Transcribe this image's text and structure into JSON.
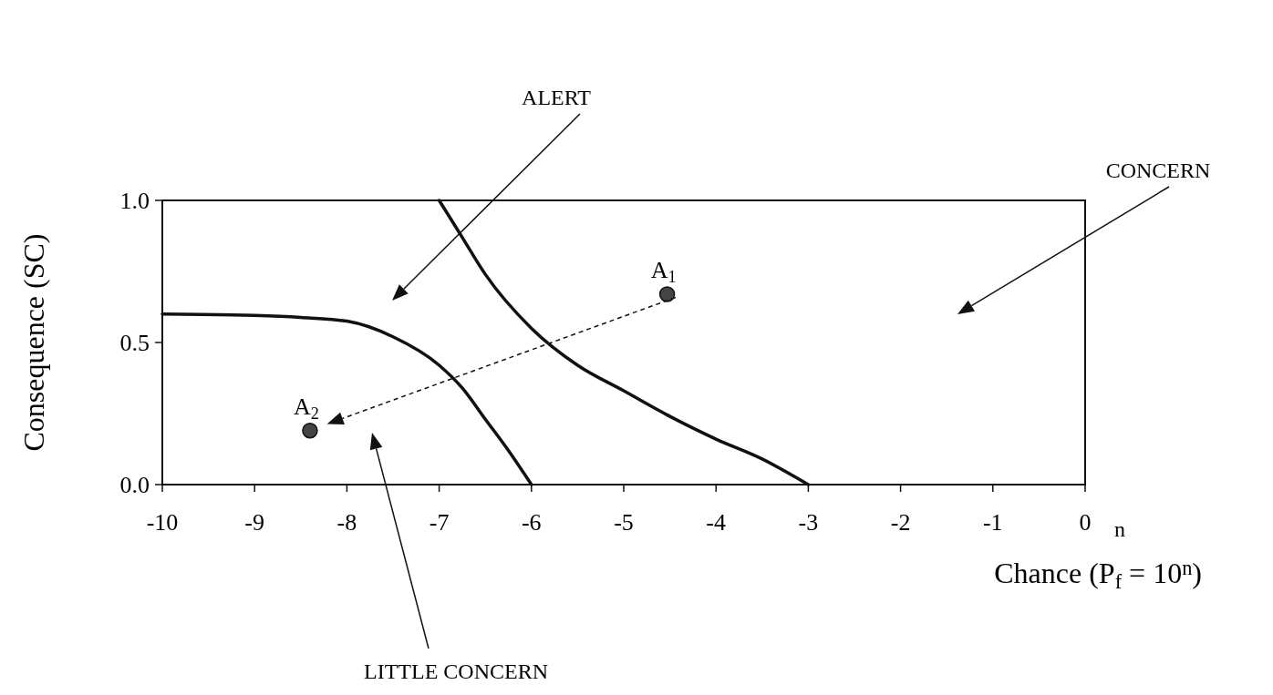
{
  "chart_data": {
    "type": "line",
    "xlabel": "Chance (P$_{f}$ = 10$^{n}$)",
    "ylabel": "Consequence (SC)",
    "xlim": [
      -10,
      0
    ],
    "xticks": [
      -10,
      -9,
      -8,
      -7,
      -6,
      -5,
      -4,
      -3,
      -2,
      -1,
      0
    ],
    "ylim": [
      0,
      1
    ],
    "yticks": [
      {
        "value": 0,
        "label": "0.0"
      },
      {
        "value": 0.5,
        "label": "0.5"
      },
      {
        "value": 1,
        "label": "1.0"
      }
    ],
    "grid": false,
    "series": [
      {
        "color": "#111111",
        "x": [
          -10,
          -9,
          -8.5,
          -8,
          -7.5,
          -7,
          -6.75,
          -6.5,
          -6.25,
          -6
        ],
        "values": [
          0.6,
          0.595,
          0.588,
          0.575,
          0.52,
          0.42,
          0.34,
          0.23,
          0.12,
          0
        ]
      },
      {
        "color": "#111111",
        "x": [
          -7,
          -6.75,
          -6.5,
          -6,
          -5.5,
          -5,
          -4.5,
          -4,
          -3.5,
          -3
        ],
        "values": [
          1,
          0.87,
          0.74,
          0.55,
          0.42,
          0.33,
          0.24,
          0.16,
          0.09,
          0
        ]
      },
      {
        "type": "scatter",
        "name": "A$_{1}$",
        "color": "#444444",
        "marker": "circle",
        "x": [
          -4.53
        ],
        "values": [
          0.67
        ]
      },
      {
        "type": "scatter",
        "name": "A$_{2}$",
        "color": "#444444",
        "marker": "circle",
        "x": [
          -8.4
        ],
        "values": [
          0.19
        ]
      }
    ],
    "annotations": [
      "ALERT",
      "CONCERN",
      "LITTLE CONCERN",
      "n"
    ]
  }
}
